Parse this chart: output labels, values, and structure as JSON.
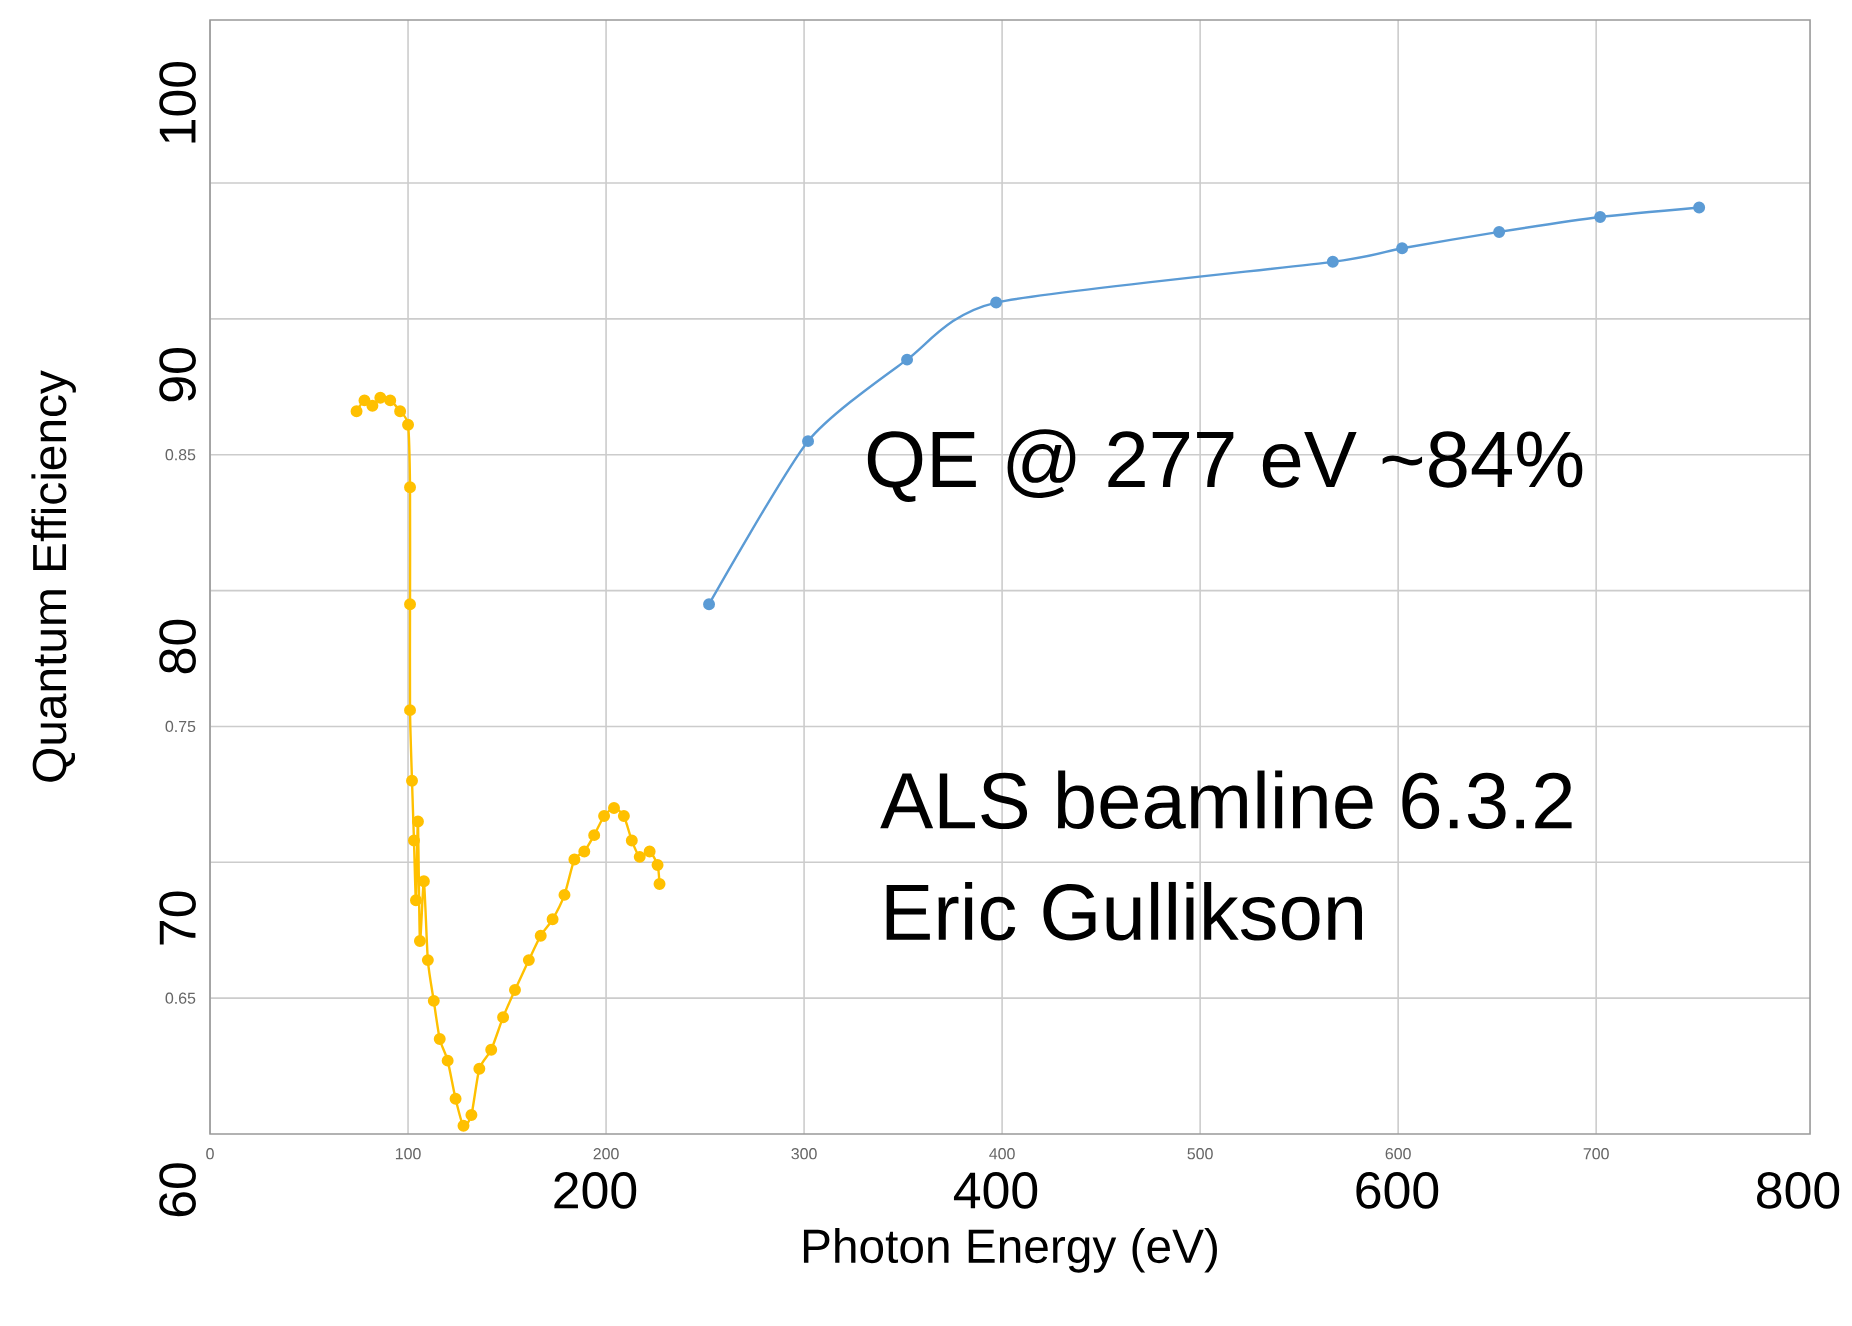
{
  "chart_data": {
    "type": "line",
    "xlabel": "Photon Energy (eV)",
    "y2label": "Quantum Efficiency",
    "xlim": [
      0,
      808
    ],
    "xticks": [
      0,
      100,
      200,
      300,
      400,
      500,
      600,
      700
    ],
    "ylim": [
      0.6,
      1.01
    ],
    "yticks": [
      {
        "value": 0.65,
        "label": "0.65"
      },
      {
        "value": 0.7,
        "label": null
      },
      {
        "value": 0.75,
        "label": "0.75"
      },
      {
        "value": 0.8,
        "label": null
      },
      {
        "value": 0.85,
        "label": "0.85"
      },
      {
        "value": 0.9,
        "label": null
      },
      {
        "value": 0.95,
        "label": null
      }
    ],
    "x2lim": [
      8,
      806
    ],
    "x2ticks": [
      200,
      400,
      600,
      800
    ],
    "y2lim": [
      60,
      101
    ],
    "y2ticks": [
      60,
      70,
      80,
      90,
      100
    ],
    "grid": true,
    "marker": "circle",
    "line_style": "solid",
    "annotations": [
      "QE @ 277 eV ~84%",
      "ALS beamline 6.3.2",
      "Eric Gullikson"
    ],
    "series": [
      {
        "color": "#ffc000",
        "x": [
          74,
          78,
          82,
          86,
          91,
          96,
          100,
          101,
          101,
          101,
          102,
          103,
          104,
          105,
          106,
          108,
          110,
          113,
          116,
          120,
          124,
          128,
          132,
          136,
          142,
          148,
          154,
          161,
          167,
          173,
          179,
          184,
          189,
          194,
          199,
          204,
          209,
          213,
          217,
          222,
          226,
          227
        ],
        "values": [
          0.866,
          0.87,
          0.868,
          0.871,
          0.87,
          0.866,
          0.861,
          0.838,
          0.795,
          0.756,
          0.73,
          0.708,
          0.686,
          0.715,
          0.671,
          0.693,
          0.664,
          0.649,
          0.635,
          0.627,
          0.613,
          0.603,
          0.607,
          0.624,
          0.631,
          0.643,
          0.653,
          0.664,
          0.673,
          0.679,
          0.688,
          0.701,
          0.704,
          0.71,
          0.717,
          0.72,
          0.717,
          0.708,
          0.702,
          0.704,
          0.699,
          0.692
        ]
      },
      {
        "color": "#5b9bd5",
        "x": [
          252,
          302,
          352,
          397,
          567,
          602,
          651,
          702,
          752
        ],
        "values": [
          0.795,
          0.855,
          0.885,
          0.906,
          0.921,
          0.926,
          0.932,
          0.9375,
          0.941
        ]
      }
    ]
  }
}
